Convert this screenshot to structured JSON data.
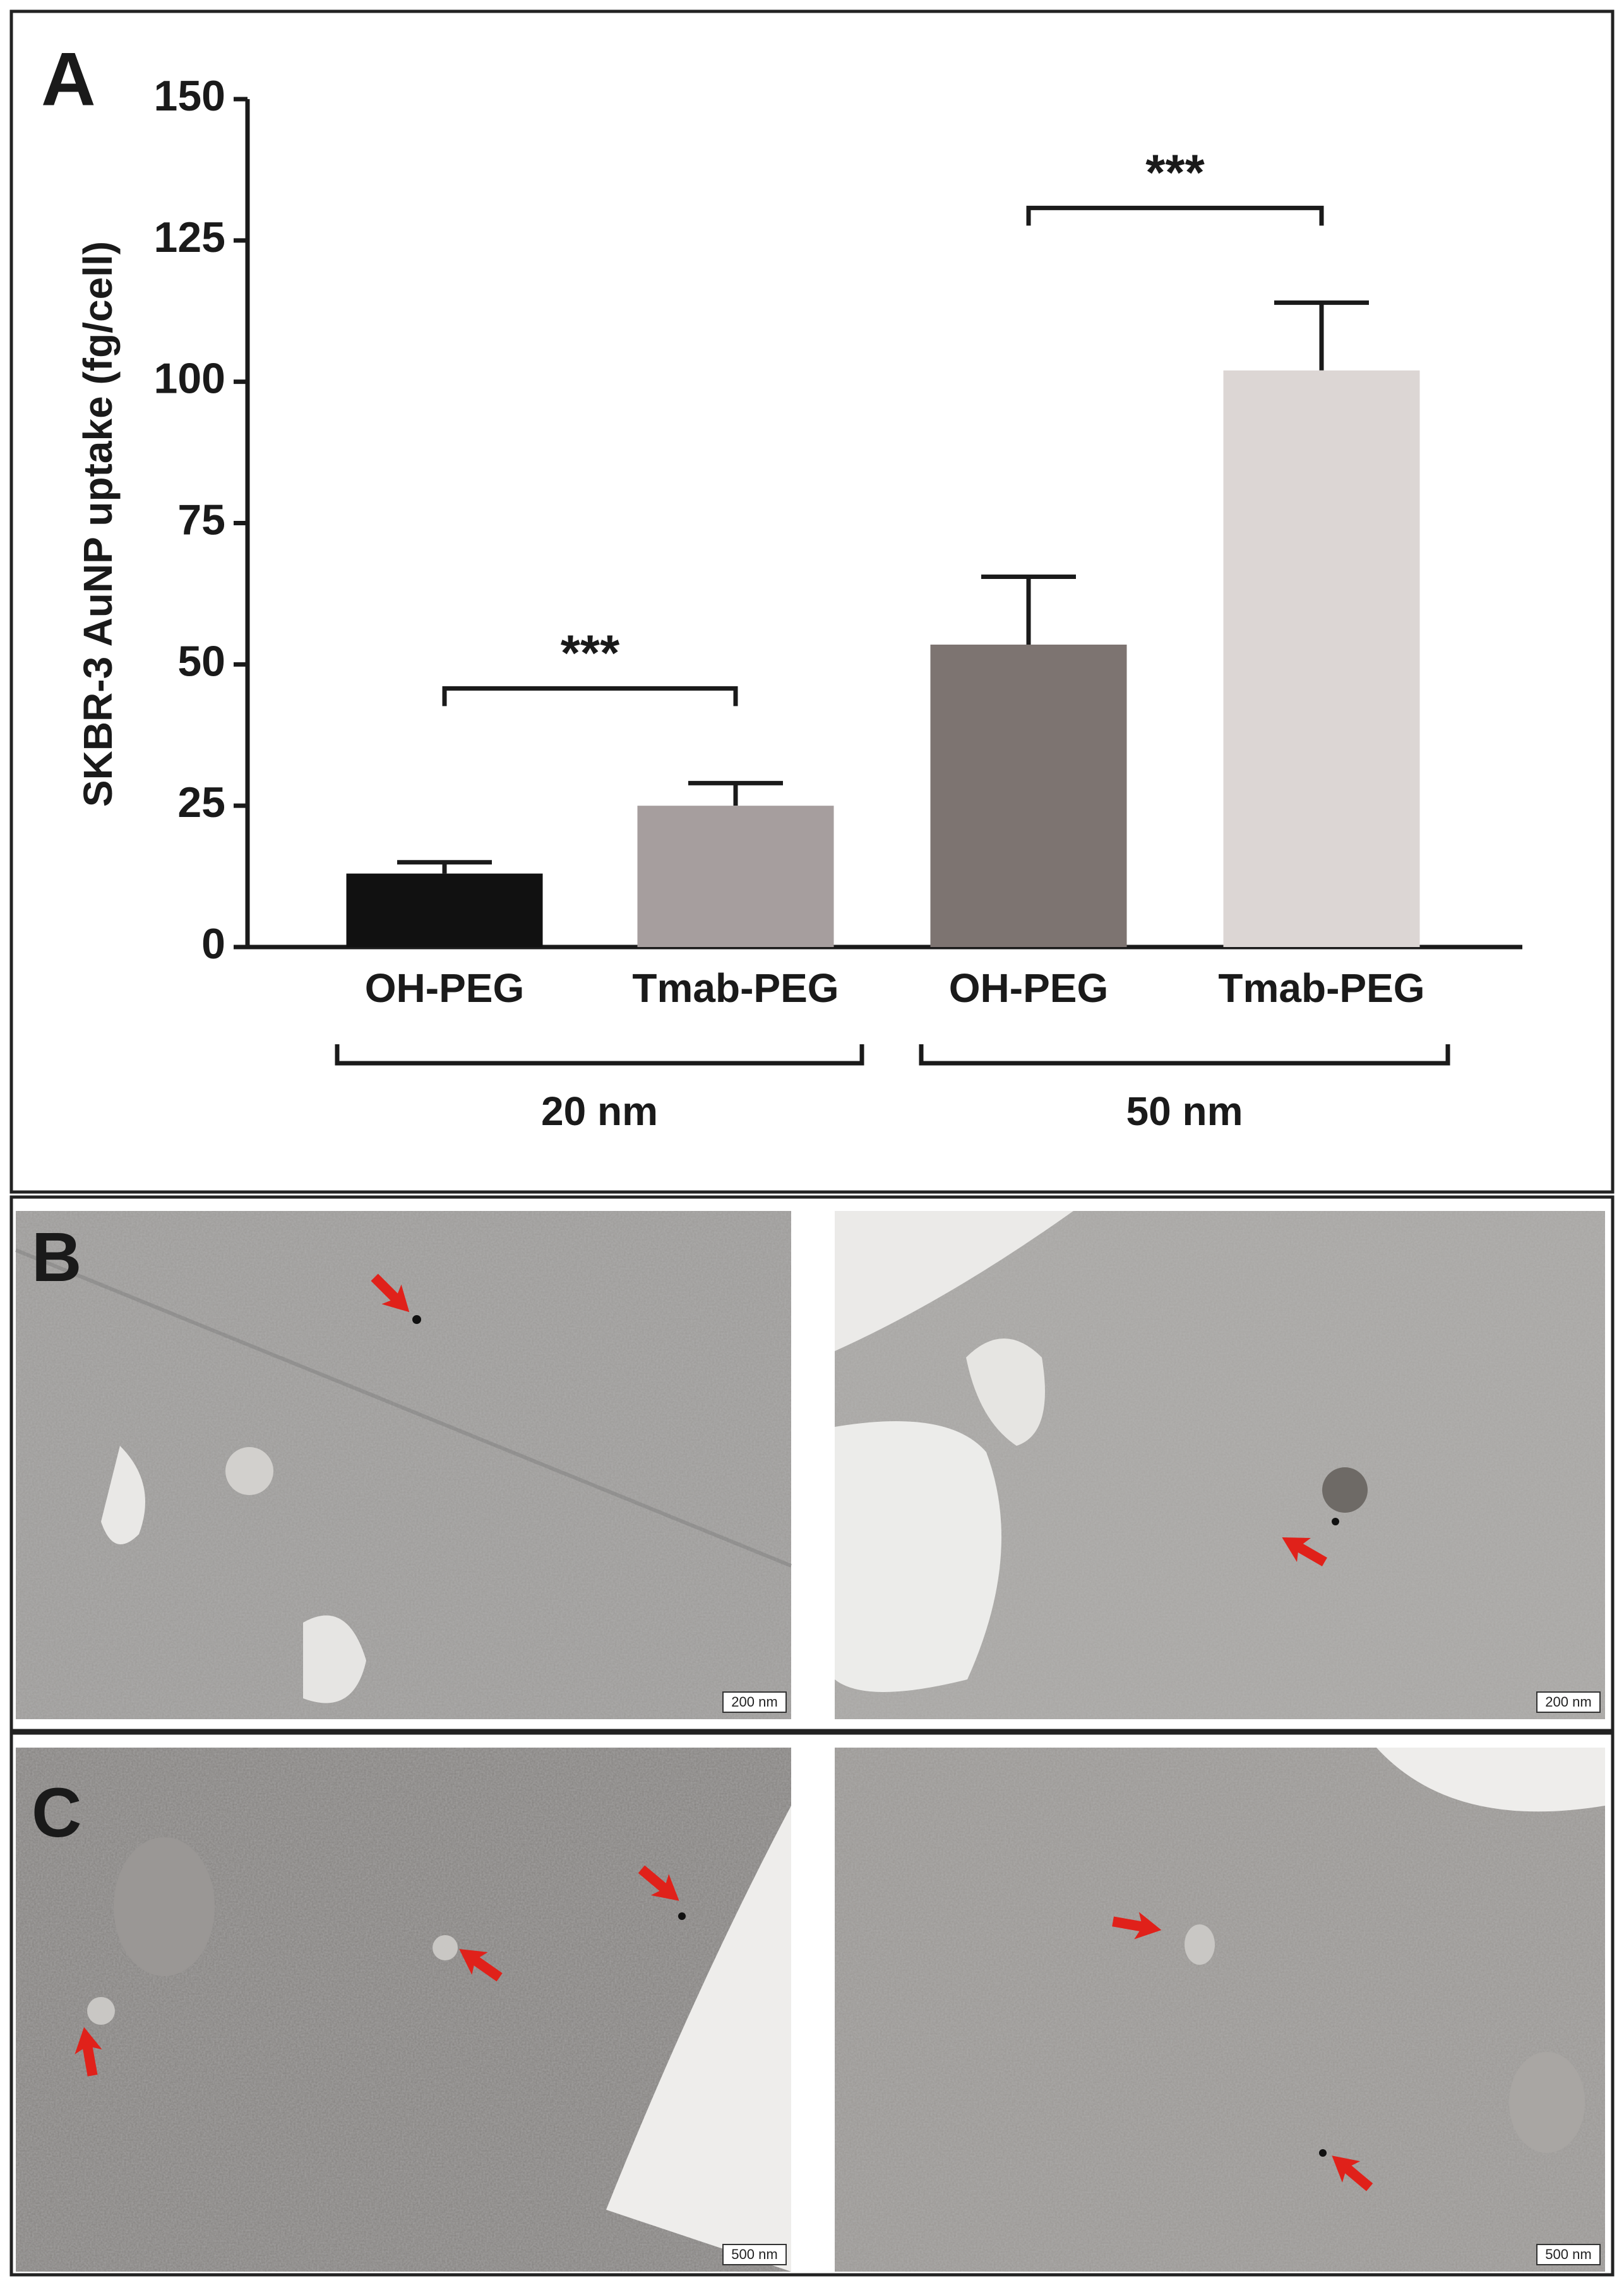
{
  "chart_data": {
    "type": "bar",
    "y_label": "SKBR-3 AuNP uptake (fg/cell)",
    "categories": [
      "OH-PEG",
      "Tmab-PEG",
      "OH-PEG",
      "Tmab-PEG"
    ],
    "groups": [
      "20 nm",
      "50 nm"
    ],
    "values": [
      13,
      25,
      53.5,
      102
    ],
    "errors": [
      2,
      4,
      12,
      12
    ],
    "colors": [
      "#111111",
      "#a69e9e",
      "#7d7471",
      "#dcd6d4"
    ],
    "annotations": [
      "***",
      "***"
    ],
    "ylim": [
      0,
      150
    ],
    "yticks": [
      0,
      25,
      50,
      75,
      100,
      125,
      150
    ]
  },
  "panel_labels": [
    "A",
    "B",
    "C"
  ],
  "scale_bars": [
    "200 nm",
    "200 nm",
    "500 nm",
    "500 nm"
  ]
}
